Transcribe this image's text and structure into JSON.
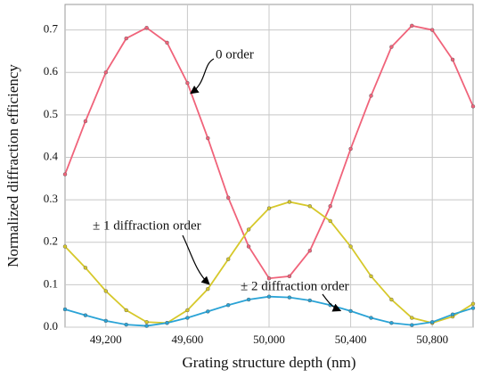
{
  "chart_data": {
    "type": "line",
    "x_label": "Grating structure depth (nm)",
    "y_label": "Normalized diffraction efficiency",
    "x": [
      49000,
      49100,
      49200,
      49300,
      49400,
      49500,
      49600,
      49700,
      49800,
      49900,
      50000,
      50100,
      50200,
      50300,
      50400,
      50500,
      50600,
      50700,
      50800,
      50900,
      51000
    ],
    "series": [
      {
        "name": "0 order",
        "color": "#f0637a",
        "values": [
          0.36,
          0.485,
          0.6,
          0.68,
          0.705,
          0.67,
          0.575,
          0.445,
          0.305,
          0.19,
          0.115,
          0.12,
          0.18,
          0.285,
          0.42,
          0.545,
          0.66,
          0.71,
          0.7,
          0.63,
          0.52
        ]
      },
      {
        "name": "± 1 diffraction order",
        "color": "#d6c82a",
        "values": [
          0.19,
          0.14,
          0.085,
          0.04,
          0.012,
          0.01,
          0.04,
          0.09,
          0.16,
          0.23,
          0.28,
          0.295,
          0.285,
          0.25,
          0.19,
          0.12,
          0.065,
          0.022,
          0.01,
          0.025,
          0.055
        ]
      },
      {
        "name": "± 2 diffraction order",
        "color": "#2aa3d6",
        "values": [
          0.042,
          0.028,
          0.015,
          0.006,
          0.003,
          0.01,
          0.022,
          0.037,
          0.052,
          0.065,
          0.072,
          0.07,
          0.063,
          0.052,
          0.038,
          0.022,
          0.01,
          0.005,
          0.012,
          0.03,
          0.045
        ]
      }
    ],
    "xlim": [
      49000,
      51000
    ],
    "xticks": [
      {
        "value": 49200,
        "label": "49,200"
      },
      {
        "value": 49600,
        "label": "49,600"
      },
      {
        "value": 50000,
        "label": "50,000"
      },
      {
        "value": 50400,
        "label": "50,400"
      },
      {
        "value": 50800,
        "label": "50,800"
      }
    ],
    "ylim": [
      0,
      0.76
    ],
    "yticks": [
      {
        "value": 0,
        "label": "0.0"
      },
      0.1,
      0.2,
      0.3,
      0.4,
      0.5,
      0.6,
      0.7
    ],
    "grid": true
  }
}
